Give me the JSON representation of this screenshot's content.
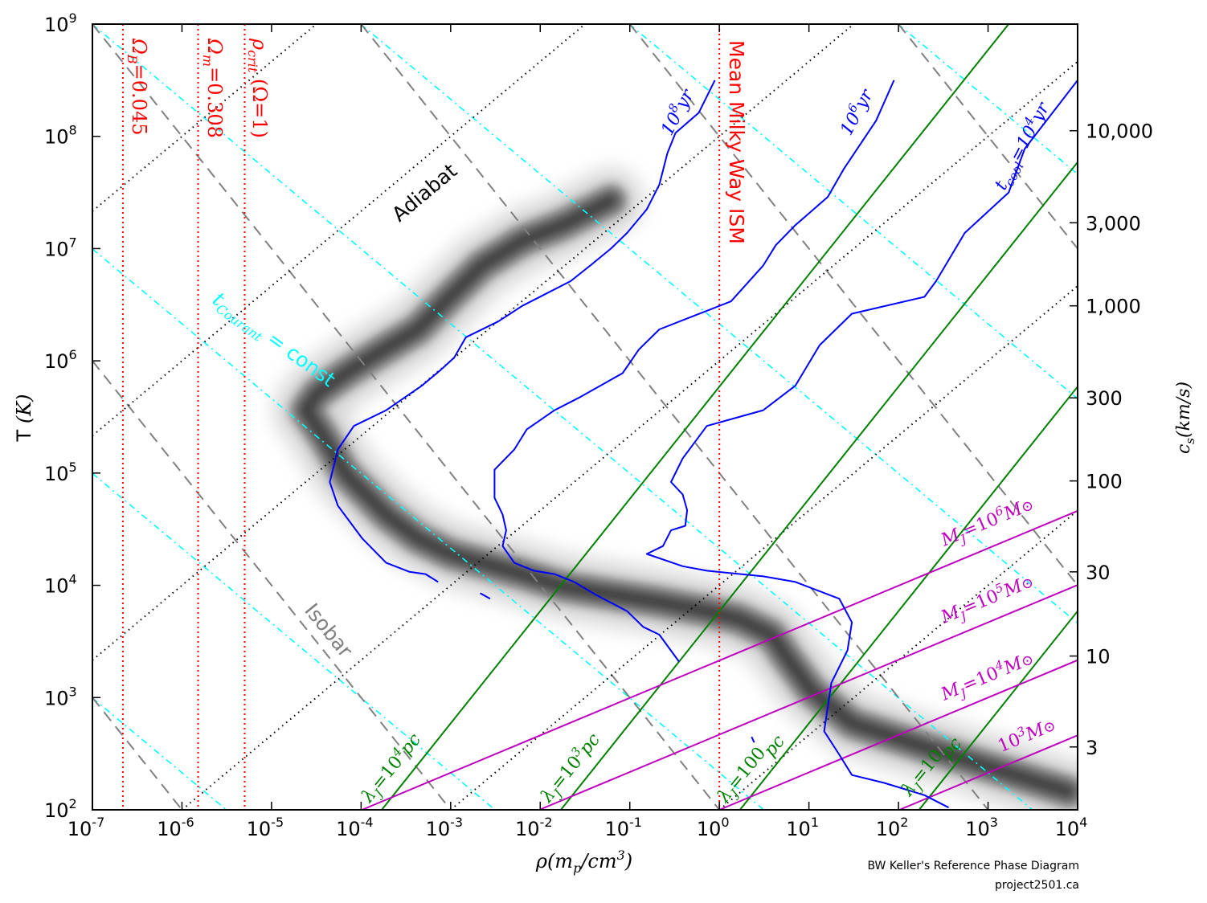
{
  "chart_data": {
    "type": "line",
    "xscale": "log",
    "yscale": "log",
    "xlabel": {
      "main": "ρ(m",
      "sub": "p",
      "mid": "/cm",
      "sup": "3",
      "end": ")"
    },
    "ylabel": {
      "main": "T ",
      "unit": "(K)"
    },
    "right_ylabel": {
      "main": "c",
      "sub": "s",
      "unit": "(km/s)"
    },
    "xlim_log10": [
      -7,
      4
    ],
    "ylim_log10": [
      2,
      9
    ],
    "xtick_exponents": [
      "-7",
      "-6",
      "-5",
      "-4",
      "-3",
      "-2",
      "-1",
      "0",
      "1",
      "2",
      "3",
      "4"
    ],
    "ytick_exponents": [
      "2",
      "3",
      "4",
      "5",
      "6",
      "7",
      "8",
      "9"
    ],
    "tick_base": "10",
    "right_ticks": [
      {
        "label": "10,000",
        "log10_T": 8.05
      },
      {
        "label": "3,000",
        "log10_T": 7.23
      },
      {
        "label": "1,000",
        "log10_T": 6.49
      },
      {
        "label": "300",
        "log10_T": 5.67
      },
      {
        "label": "100",
        "log10_T": 4.93
      },
      {
        "label": "30",
        "log10_T": 4.12
      },
      {
        "label": "10",
        "log10_T": 3.37
      },
      {
        "label": "3",
        "log10_T": 2.56
      }
    ],
    "reference_densities": [
      {
        "log10_rho": -6.66,
        "label": {
          "sym": "Ω",
          "sub": "B",
          "rest": "=0.045"
        }
      },
      {
        "log10_rho": -5.82,
        "label": {
          "sym": "Ω",
          "sub": "m",
          "rest": "=0.308"
        }
      },
      {
        "log10_rho": -5.3,
        "label": {
          "sym": "ρ",
          "sub": "crit",
          "rest": " (Ω=1)"
        }
      },
      {
        "log10_rho": 0.0,
        "label": {
          "text": "Mean Milky Way ISM"
        }
      }
    ],
    "adiabats": {
      "label": "Adiabat",
      "slope": 0.6667,
      "intercepts": [
        14,
        12,
        10,
        8,
        6,
        4,
        2
      ]
    },
    "isobars": {
      "label": "Isobar",
      "slope": -1,
      "intercepts": [
        -4,
        -1,
        2,
        5,
        8,
        11
      ]
    },
    "courant": {
      "label": {
        "sym": "t",
        "sub": "Courant",
        "rest": " = const"
      },
      "slope": -0.6667,
      "intercepts": [
        -3.67,
        -1.67,
        0.33,
        2.33,
        4.33,
        6.33,
        8.33,
        10.33,
        12.33
      ]
    },
    "jeans_length": {
      "slope": 1,
      "lines": [
        {
          "intercept": 5.77,
          "label": {
            "sym": "λ",
            "sub": "J",
            "eq": "=10",
            "sup": "4",
            "unit": "pc"
          }
        },
        {
          "intercept": 3.77,
          "label": {
            "sym": "λ",
            "sub": "J",
            "eq": "=10",
            "sup": "3",
            "unit": "pc"
          }
        },
        {
          "intercept": 1.77,
          "label": {
            "sym": "λ",
            "sub": "J",
            "eq": "=100",
            "sup": "",
            "unit": "pc"
          }
        },
        {
          "intercept": -0.23,
          "label": {
            "sym": "λ",
            "sub": "J",
            "eq": "=10",
            "sup": "",
            "unit": "pc"
          }
        }
      ]
    },
    "jeans_mass": {
      "slope": 0.3333,
      "lines": [
        {
          "intercept": 3.33,
          "label": {
            "sym": "M",
            "sub": "J",
            "eq": "=10",
            "sup": "6",
            "unit": "M",
            "usub": "⊙"
          }
        },
        {
          "intercept": 2.67,
          "label": {
            "sym": "M",
            "sub": "J",
            "eq": "=10",
            "sup": "5",
            "unit": "M",
            "usub": "⊙"
          }
        },
        {
          "intercept": 2.0,
          "label": {
            "sym": "M",
            "sub": "J",
            "eq": "=10",
            "sup": "4",
            "unit": "M",
            "usub": "⊙"
          }
        },
        {
          "intercept": 1.33,
          "label": {
            "sym": "",
            "sub": "",
            "eq": "10",
            "sup": "3",
            "unit": "M",
            "usub": "⊙"
          }
        }
      ]
    },
    "cooling_contours": [
      {
        "label": {
          "pre": "",
          "base": "10",
          "sup": "8",
          "unit": "yr"
        },
        "points": [
          [
            -0.05,
            8.5
          ],
          [
            -0.23,
            8.21
          ],
          [
            -0.49,
            8.03
          ],
          [
            -0.58,
            7.85
          ],
          [
            -0.67,
            7.57
          ],
          [
            -0.81,
            7.35
          ],
          [
            -1.03,
            7.14
          ],
          [
            -1.21,
            7.0
          ],
          [
            -1.44,
            6.85
          ],
          [
            -1.66,
            6.71
          ],
          [
            -2.2,
            6.49
          ],
          [
            -2.47,
            6.35
          ],
          [
            -2.83,
            6.21
          ],
          [
            -2.96,
            6.03
          ],
          [
            -3.11,
            5.92
          ],
          [
            -3.32,
            5.78
          ],
          [
            -3.72,
            5.56
          ],
          [
            -4.08,
            5.42
          ],
          [
            -4.26,
            5.21
          ],
          [
            -4.35,
            4.92
          ],
          [
            -4.26,
            4.71
          ],
          [
            -3.99,
            4.42
          ],
          [
            -3.72,
            4.2
          ],
          [
            -3.46,
            4.12
          ],
          [
            -3.28,
            4.1
          ],
          [
            -3.14,
            4.03
          ]
        ],
        "fragments": [
          [
            [
              -2.67,
              3.93
            ],
            [
              -2.56,
              3.88
            ]
          ]
        ]
      },
      {
        "label": {
          "pre": "",
          "base": "10",
          "sup": "6",
          "unit": "yr"
        },
        "points": [
          [
            1.95,
            8.5
          ],
          [
            1.75,
            8.14
          ],
          [
            1.39,
            7.71
          ],
          [
            1.21,
            7.46
          ],
          [
            0.85,
            7.21
          ],
          [
            0.63,
            7.03
          ],
          [
            0.49,
            6.85
          ],
          [
            0.13,
            6.53
          ],
          [
            -0.32,
            6.39
          ],
          [
            -0.67,
            6.28
          ],
          [
            -0.9,
            6.1
          ],
          [
            -1.08,
            5.89
          ],
          [
            -1.57,
            5.67
          ],
          [
            -1.84,
            5.56
          ],
          [
            -2.15,
            5.39
          ],
          [
            -2.29,
            5.21
          ],
          [
            -2.51,
            5.03
          ],
          [
            -2.51,
            4.78
          ],
          [
            -2.42,
            4.63
          ],
          [
            -2.38,
            4.49
          ],
          [
            -2.42,
            4.35
          ],
          [
            -2.29,
            4.2
          ],
          [
            -2.07,
            4.13
          ],
          [
            -1.84,
            4.1
          ],
          [
            -1.62,
            4.03
          ],
          [
            -1.39,
            3.92
          ],
          [
            -1.03,
            3.77
          ],
          [
            -0.85,
            3.63
          ],
          [
            -0.67,
            3.56
          ],
          [
            -0.45,
            3.32
          ]
        ],
        "fragments": [
          [
            [
              0.36,
              2.65
            ],
            [
              0.39,
              2.6
            ]
          ]
        ]
      },
      {
        "label": {
          "pre": "t",
          "sub": "cool",
          "eq": "=",
          "base": "10",
          "sup": "4",
          "unit": "yr"
        },
        "points": [
          [
            4.0,
            8.5
          ],
          [
            3.41,
            7.89
          ],
          [
            3.23,
            7.5
          ],
          [
            2.74,
            7.14
          ],
          [
            2.42,
            6.71
          ],
          [
            2.29,
            6.57
          ],
          [
            1.48,
            6.42
          ],
          [
            1.12,
            6.14
          ],
          [
            0.85,
            5.78
          ],
          [
            0.49,
            5.56
          ],
          [
            -0.14,
            5.42
          ],
          [
            -0.41,
            5.13
          ],
          [
            -0.54,
            4.92
          ],
          [
            -0.41,
            4.81
          ],
          [
            -0.36,
            4.67
          ],
          [
            -0.38,
            4.53
          ],
          [
            -0.54,
            4.49
          ],
          [
            -0.63,
            4.35
          ],
          [
            -0.81,
            4.28
          ],
          [
            -0.41,
            4.17
          ],
          [
            -0.14,
            4.13
          ],
          [
            0.49,
            4.08
          ],
          [
            0.85,
            4.03
          ],
          [
            1.34,
            3.88
          ],
          [
            1.48,
            3.67
          ],
          [
            1.43,
            3.42
          ],
          [
            1.25,
            3.13
          ],
          [
            1.17,
            2.7
          ],
          [
            1.34,
            2.49
          ],
          [
            1.48,
            2.31
          ],
          [
            1.84,
            2.24
          ],
          [
            2.29,
            2.13
          ],
          [
            2.56,
            2.02
          ]
        ],
        "fragments": []
      }
    ],
    "density_ridge": [
      [
        3.9,
        2.16
      ],
      [
        3.18,
        2.34
      ],
      [
        2.29,
        2.56
      ],
      [
        1.48,
        2.77
      ],
      [
        1.03,
        3.06
      ],
      [
        0.76,
        3.35
      ],
      [
        0.58,
        3.56
      ],
      [
        0.22,
        3.7
      ],
      [
        -0.14,
        3.77
      ],
      [
        -0.67,
        3.85
      ],
      [
        -1.21,
        3.92
      ],
      [
        -1.75,
        3.99
      ],
      [
        -2.2,
        4.1
      ],
      [
        -2.65,
        4.2
      ],
      [
        -3.01,
        4.28
      ],
      [
        -3.37,
        4.42
      ],
      [
        -3.72,
        4.63
      ],
      [
        -4.17,
        4.99
      ],
      [
        -4.44,
        5.35
      ],
      [
        -4.62,
        5.56
      ],
      [
        -4.49,
        5.71
      ],
      [
        -4.17,
        5.89
      ],
      [
        -3.81,
        6.07
      ],
      [
        -3.37,
        6.28
      ],
      [
        -3.01,
        6.57
      ],
      [
        -2.65,
        6.85
      ],
      [
        -2.2,
        7.07
      ],
      [
        -1.75,
        7.21
      ],
      [
        -1.21,
        7.43
      ]
    ],
    "colors": {
      "reference": "#ff0000",
      "adiabat": "#000000",
      "isobar": "#808080",
      "courant": "#00ffff",
      "jeans_length": "#008000",
      "jeans_mass": "#bf00bf",
      "cooling": "#0000ff",
      "density": "#333333"
    }
  },
  "footer": {
    "line1": "BW Keller's Reference Phase Diagram",
    "line2": "project2501.ca"
  }
}
